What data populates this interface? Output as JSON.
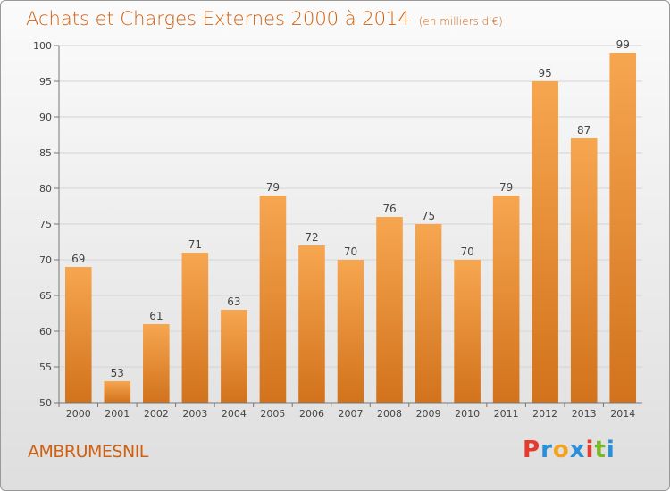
{
  "title": "Achats et Charges Externes 2000 à 2014",
  "subtitle": "(en milliers d'€)",
  "commune": "AMBRUMESNIL",
  "logo": {
    "letters": [
      "P",
      "r",
      "o",
      "x",
      "i",
      "t",
      "i"
    ],
    "colors": [
      "#e53a2e",
      "#2a8fd6",
      "#f4a21c",
      "#2a8fd6",
      "#e53a2e",
      "#7ab828",
      "#2a8fd6"
    ]
  },
  "chart_data": {
    "type": "bar",
    "title": "Achats et Charges Externes 2000 à 2014",
    "subtitle": "(en milliers d'€)",
    "categories": [
      "2000",
      "2001",
      "2002",
      "2003",
      "2004",
      "2005",
      "2006",
      "2007",
      "2008",
      "2009",
      "2010",
      "2011",
      "2012",
      "2013",
      "2014"
    ],
    "values": [
      69,
      53,
      61,
      71,
      63,
      79,
      72,
      70,
      76,
      75,
      70,
      79,
      95,
      87,
      99
    ],
    "ylim": [
      50,
      100
    ],
    "yticks": [
      50,
      55,
      60,
      65,
      70,
      75,
      80,
      85,
      90,
      95,
      100
    ],
    "grid": true,
    "bar_color": "#f5a04a"
  }
}
